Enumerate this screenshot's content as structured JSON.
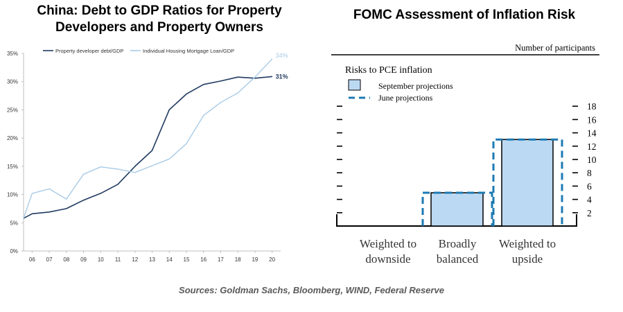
{
  "left_title_line1": "China: Debt to GDP Ratios for Property",
  "left_title_line2": "Developers and Property Owners",
  "right_title": "FOMC Assessment of Inflation Risk",
  "source": "Sources: Goldman Sachs, Bloomberg, WIND, Federal Reserve",
  "colors": {
    "dev": "#1f3a5f",
    "mortgage": "#a9cbe6",
    "bar_fill": "#bcd9f3",
    "june_dash": "#1b7ab3"
  },
  "chart_data": [
    {
      "type": "line",
      "title": "China: Debt to GDP Ratios for Property Developers and Property Owners",
      "x_tick_labels": [
        "06",
        "07",
        "08",
        "09",
        "10",
        "11",
        "12",
        "13",
        "14",
        "15",
        "16",
        "17",
        "18",
        "19",
        "20"
      ],
      "y_tick_labels": [
        "0%",
        "5%",
        "10%",
        "15%",
        "20%",
        "25%",
        "30%",
        "35%"
      ],
      "ylim": [
        0,
        35
      ],
      "grid": false,
      "legend": "top-left",
      "series": [
        {
          "name": "Property developer debt/GDP",
          "x": [
            2005.5,
            2006,
            2007,
            2008,
            2009,
            2010,
            2011,
            2012,
            2013,
            2014,
            2015,
            2016,
            2017,
            2018,
            2019,
            2020
          ],
          "values": [
            5.8,
            6.6,
            6.9,
            7.5,
            9.0,
            10.2,
            11.8,
            15.0,
            17.8,
            25.0,
            27.8,
            29.5,
            30.1,
            30.8,
            30.6,
            30.9
          ],
          "end_label": "31%"
        },
        {
          "name": "Individual Housing Mortgage Loan/GDP",
          "x": [
            2005.5,
            2006,
            2007,
            2008,
            2009,
            2010,
            2011,
            2012,
            2013,
            2014,
            2015,
            2016,
            2017,
            2018,
            2019,
            2020
          ],
          "values": [
            5.8,
            10.2,
            11.0,
            9.2,
            13.6,
            14.9,
            14.5,
            13.9,
            15.1,
            16.3,
            19.0,
            24.0,
            26.3,
            28.0,
            30.8,
            34.0
          ],
          "end_label": "34%"
        }
      ]
    },
    {
      "type": "bar",
      "header": "Number of participants",
      "subtitle": "Risks to PCE inflation",
      "legend": [
        "September projections",
        "June projections"
      ],
      "categories": [
        [
          "Weighted to",
          "downside"
        ],
        [
          "Broadly",
          "balanced"
        ],
        [
          "Weighted to",
          "upside"
        ]
      ],
      "september": [
        0,
        5,
        13
      ],
      "june": [
        0,
        5,
        13
      ],
      "y_tick_labels": [
        "2",
        "4",
        "6",
        "8",
        "10",
        "12",
        "14",
        "16",
        "18"
      ],
      "ylim": [
        0,
        18
      ]
    }
  ]
}
